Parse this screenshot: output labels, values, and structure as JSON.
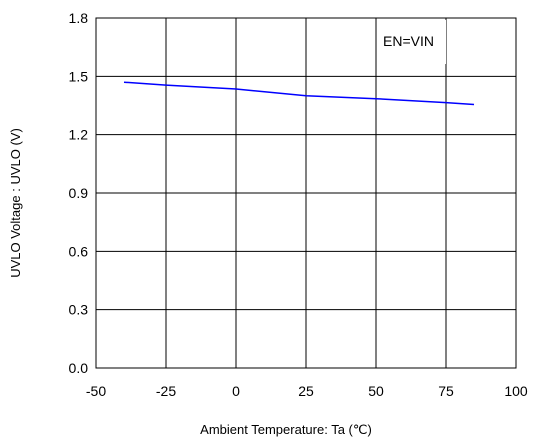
{
  "chart_data": {
    "type": "line",
    "title": "",
    "xlabel": "Ambient Temperature: Ta (℃)",
    "ylabel": "UVLO  Voltage : UVLO (V)",
    "xlim": [
      -50,
      100
    ],
    "ylim": [
      0.0,
      1.8
    ],
    "xticks": [
      "-50",
      "-25",
      "0",
      "25",
      "50",
      "75",
      "100"
    ],
    "yticks": [
      "0.0",
      "0.3",
      "0.6",
      "0.9",
      "1.2",
      "1.5",
      "1.8"
    ],
    "grid": true,
    "annotation": "EN=VIN",
    "series": [
      {
        "color": "#0000ff",
        "x": [
          -40,
          -25,
          0,
          25,
          50,
          75,
          85
        ],
        "y": [
          1.47,
          1.455,
          1.435,
          1.4,
          1.385,
          1.365,
          1.355
        ]
      }
    ]
  }
}
